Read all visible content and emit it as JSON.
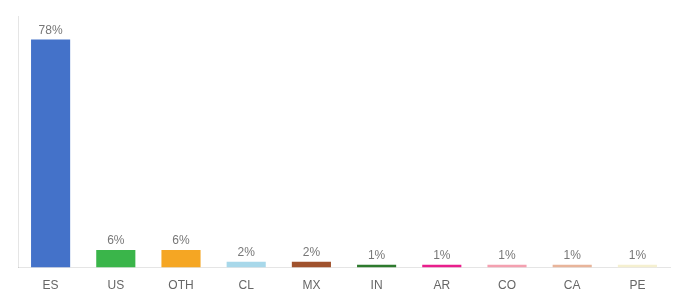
{
  "chart_data": {
    "type": "bar",
    "categories": [
      "ES",
      "US",
      "OTH",
      "CL",
      "MX",
      "IN",
      "AR",
      "CO",
      "CA",
      "PE"
    ],
    "values": [
      78,
      6,
      6,
      2,
      2,
      1,
      1,
      1,
      1,
      1
    ],
    "value_labels": [
      "78%",
      "6%",
      "6%",
      "2%",
      "2%",
      "1%",
      "1%",
      "1%",
      "1%",
      "1%"
    ],
    "colors": [
      "#4472c9",
      "#3ab54a",
      "#f5a623",
      "#a8d8ea",
      "#a0522d",
      "#2d7a2d",
      "#e91e8c",
      "#f4a0b0",
      "#e8b49a",
      "#f5f0d0"
    ],
    "ylim": [
      0,
      86
    ],
    "data_labels": true,
    "tick_labels": "x",
    "grid": false
  }
}
